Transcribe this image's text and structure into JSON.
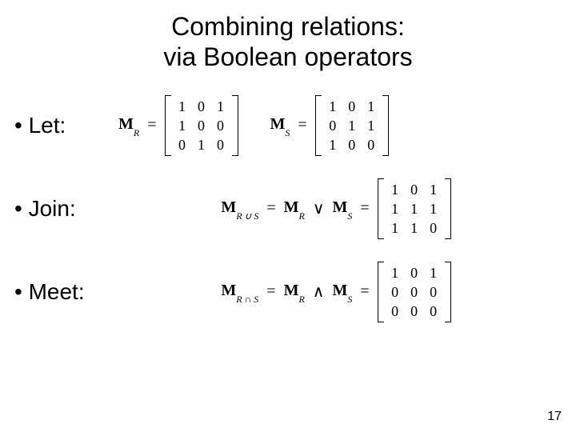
{
  "title": {
    "line1": "Combining relations:",
    "line2": "via Boolean operators",
    "fontsize": 32,
    "color": "#000000"
  },
  "bullets": {
    "let": "•  Let:",
    "join": "•  Join:",
    "meet": "•  Meet:"
  },
  "symbols": {
    "M": "M",
    "R": "R",
    "S": "S",
    "eq": "=",
    "or": "∨",
    "and": "∧",
    "union_sub": "R ∪ S",
    "inter_sub": "R ∩ S"
  },
  "matrices": {
    "MR": [
      [
        1,
        0,
        1
      ],
      [
        1,
        0,
        0
      ],
      [
        0,
        1,
        0
      ]
    ],
    "MS": [
      [
        1,
        0,
        1
      ],
      [
        0,
        1,
        1
      ],
      [
        1,
        0,
        0
      ]
    ],
    "join": [
      [
        1,
        0,
        1
      ],
      [
        1,
        1,
        1
      ],
      [
        1,
        1,
        0
      ]
    ],
    "meet": [
      [
        1,
        0,
        1
      ],
      [
        0,
        0,
        0
      ],
      [
        0,
        0,
        0
      ]
    ]
  },
  "page_number": "17",
  "style": {
    "background_color": "#ffffff",
    "text_color": "#000000",
    "body_fontsize": 28,
    "math_fontsize": 20,
    "matrix_cell_size": 24,
    "matrix_border": "#000000"
  }
}
